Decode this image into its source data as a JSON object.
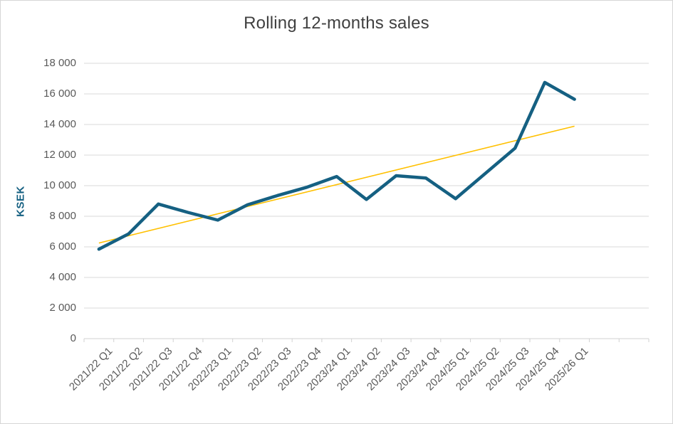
{
  "chart_data": {
    "type": "line",
    "title": "Rolling 12-months sales",
    "ylabel": "KSEK",
    "xlabel": "",
    "categories": [
      "2021/22 Q1",
      "2021/22 Q2",
      "2021/22 Q3",
      "2021/22 Q4",
      "2022/23 Q1",
      "2022/23 Q2",
      "2022/23 Q3",
      "2022/23 Q4",
      "2023/24 Q1",
      "2023/24 Q2",
      "2023/24 Q3",
      "2023/24 Q4",
      "2024/25 Q1",
      "2024/25 Q2",
      "2024/25 Q3",
      "2024/25 Q4",
      "2025/26 Q1"
    ],
    "series": [
      {
        "values": [
          5850,
          6850,
          8800,
          8250,
          7750,
          8750,
          9350,
          9900,
          10600,
          9100,
          10650,
          10500,
          9150,
          10800,
          12450,
          16750,
          15650
        ]
      }
    ],
    "trendline": {
      "type": "linear",
      "start_value": 6250,
      "end_value": 13890
    },
    "ylim": [
      0,
      18000
    ],
    "ytick_step": 2000,
    "ytick_labels": [
      "0",
      "2 000",
      "4 000",
      "6 000",
      "8 000",
      "10 000",
      "12 000",
      "14 000",
      "16 000",
      "18 000"
    ],
    "x_slot_count": 19,
    "grid": "horizontal",
    "legend": "none"
  },
  "colors": {
    "series": "#156082",
    "trendline": "#FFC000",
    "gridline": "#D9D9D9",
    "axis_line": "#D2D2D2",
    "tick": "#D2D2D2",
    "tick_label": "#595959",
    "title": "#404040",
    "ylabel": "#156082",
    "background": "#FFFFFF",
    "border": "#D6D6D6"
  }
}
